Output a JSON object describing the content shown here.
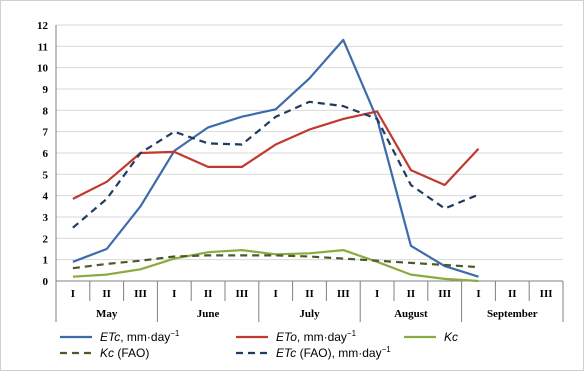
{
  "chart_data": {
    "type": "line",
    "ylim": [
      0,
      12
    ],
    "yticks": [
      "0",
      "1",
      "2",
      "3",
      "4",
      "5",
      "6",
      "7",
      "8",
      "9",
      "10",
      "11",
      "12"
    ],
    "decades": [
      "I",
      "II",
      "III",
      "I",
      "II",
      "III",
      "I",
      "II",
      "III",
      "I",
      "II",
      "III",
      "I",
      "II",
      "III"
    ],
    "months": [
      "May",
      "June",
      "July",
      "August",
      "September"
    ],
    "grid": "horizontal",
    "legend_position": "bottom",
    "series": [
      {
        "key": "etc",
        "name_italic": "ETc",
        "name_rest": ", mm·day",
        "name_sup": "−1",
        "color": "#3d6bab",
        "dash": "solid",
        "values": [
          0.9,
          1.5,
          3.5,
          6.1,
          7.2,
          7.7,
          8.05,
          9.5,
          11.3,
          7.6,
          1.65,
          0.7,
          0.2
        ]
      },
      {
        "key": "eto",
        "name_italic": "ETo",
        "name_rest": ", mm·day",
        "name_sup": "−1",
        "color": "#c0392f",
        "dash": "solid",
        "values": [
          3.85,
          4.65,
          6.0,
          6.05,
          5.35,
          5.35,
          6.4,
          7.1,
          7.6,
          7.95,
          5.2,
          4.5,
          6.2
        ]
      },
      {
        "key": "kc",
        "name_italic": "Kc",
        "name_rest": "",
        "name_sup": "",
        "color": "#8aab3f",
        "dash": "solid",
        "values": [
          0.2,
          0.3,
          0.55,
          1.05,
          1.35,
          1.45,
          1.25,
          1.3,
          1.45,
          0.9,
          0.3,
          0.1,
          0.0
        ]
      },
      {
        "key": "kc_fao",
        "name_italic": "Kc",
        "name_rest": " (FAO)",
        "name_sup": "",
        "color": "#4a5a2a",
        "dash": "dashed",
        "values": [
          0.6,
          0.8,
          0.95,
          1.15,
          1.2,
          1.2,
          1.2,
          1.15,
          1.05,
          0.95,
          0.85,
          0.75,
          0.65
        ]
      },
      {
        "key": "etc_fao",
        "name_italic": "ETc",
        "name_rest": " (FAO), mm·day",
        "name_sup": "−1",
        "color": "#1f3b5e",
        "dash": "dashed",
        "values": [
          2.5,
          3.85,
          6.0,
          7.0,
          6.45,
          6.4,
          7.7,
          8.4,
          8.2,
          7.6,
          4.5,
          3.4,
          4.05
        ]
      }
    ]
  }
}
